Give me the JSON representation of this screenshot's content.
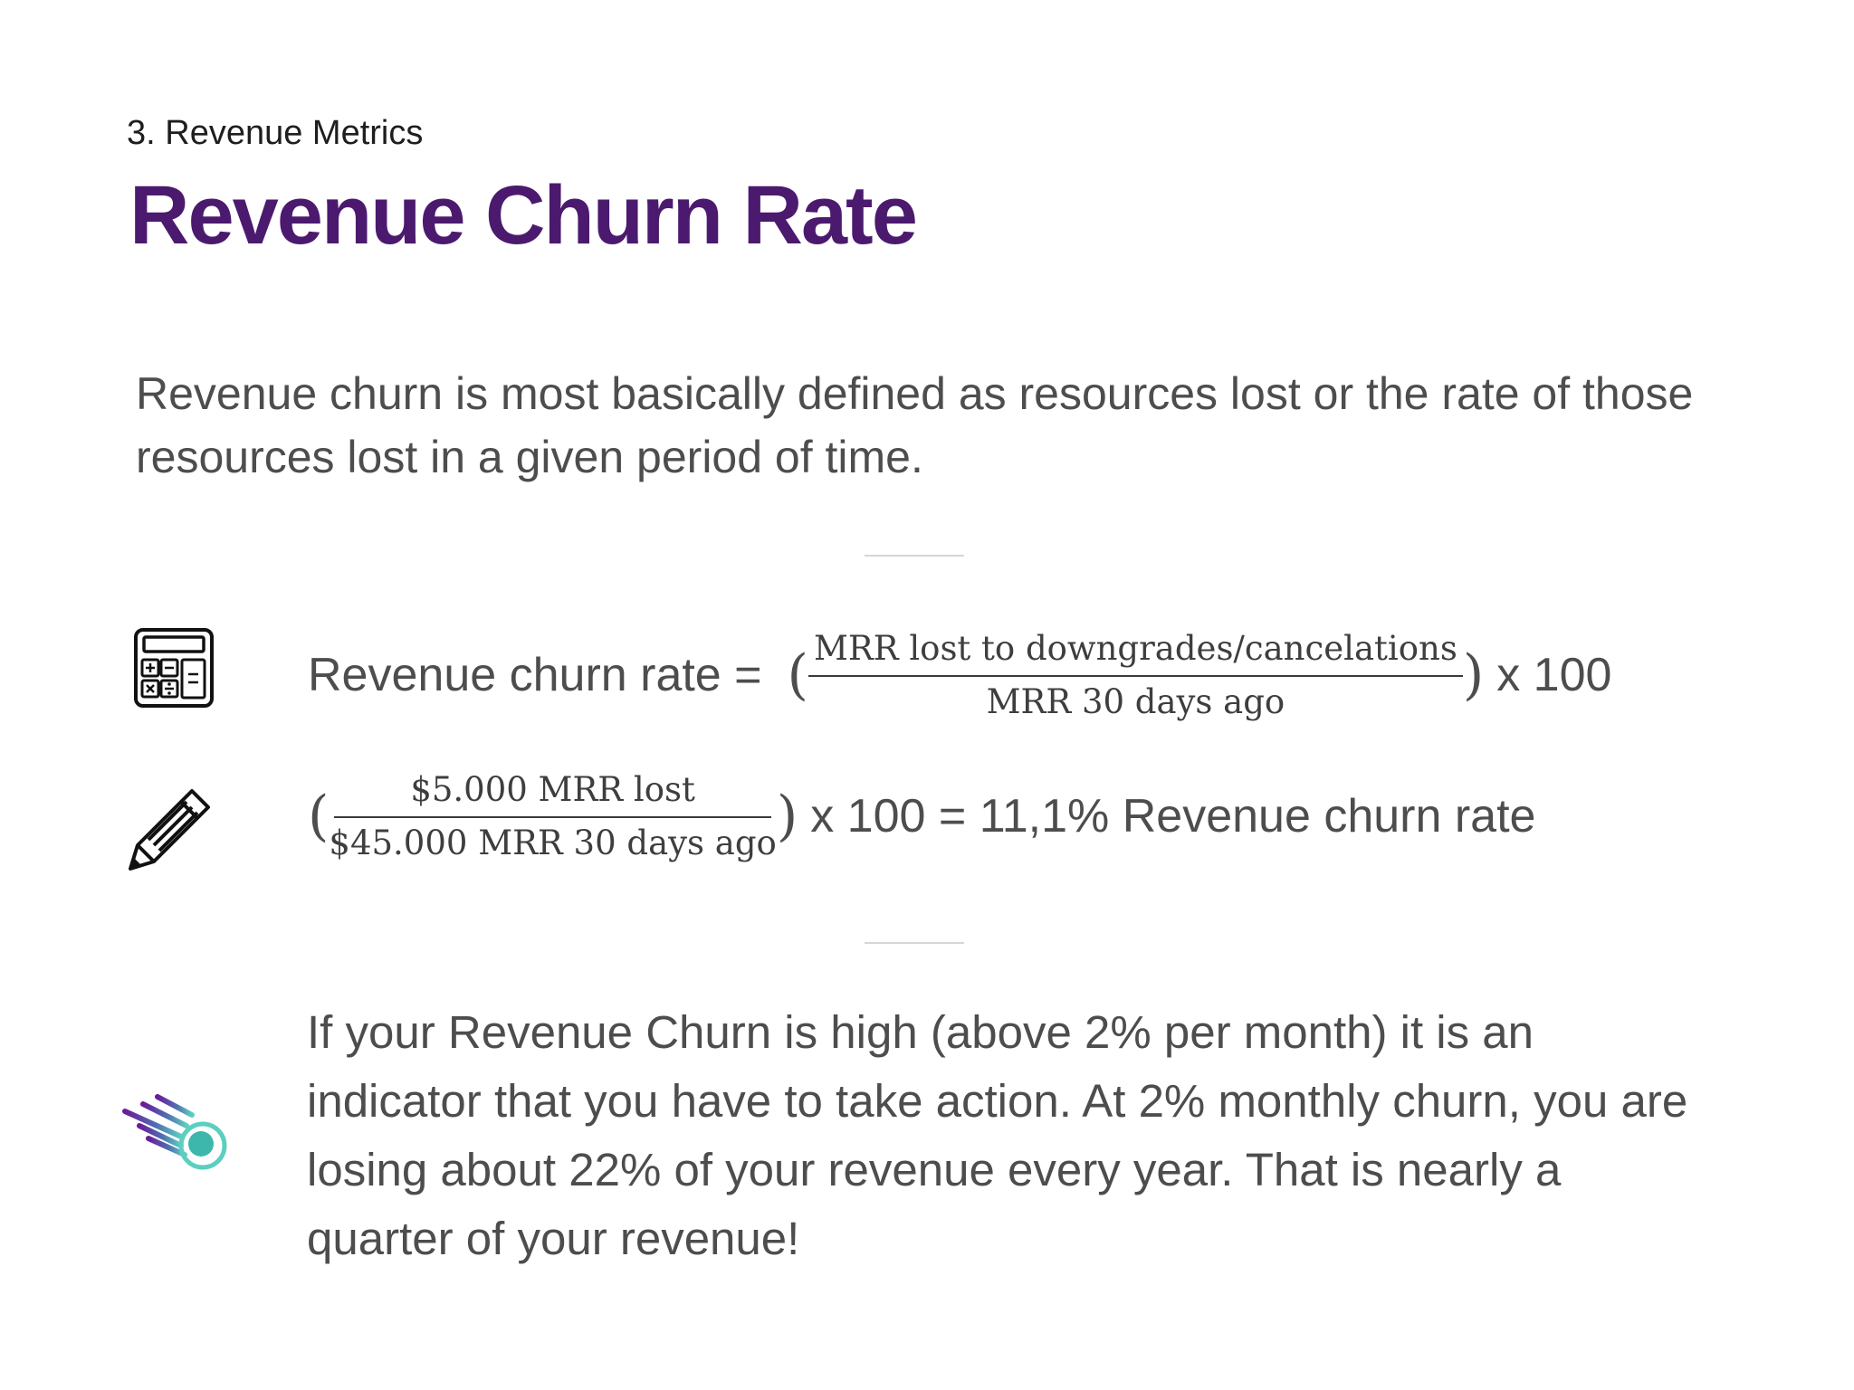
{
  "header": {
    "section_label": "3. Revenue  Metrics",
    "title": "Revenue Churn Rate"
  },
  "intro": {
    "text": "Revenue churn is most basically defined as resources lost or the rate of those resources lost in a given period of time."
  },
  "formula": {
    "label": "Revenue churn rate =",
    "open_paren": "(",
    "numerator": "MRR lost to downgrades/cancelations",
    "denominator": "MRR 30 days ago",
    "close_paren": ")",
    "multiplier": "x 100"
  },
  "example": {
    "open_paren": "(",
    "numerator": "$5.000 MRR lost",
    "denominator": "$45.000 MRR 30 days ago",
    "close_paren": ")",
    "result": "x 100 = 11,1% Revenue churn rate"
  },
  "note": {
    "text": "If your Revenue Churn is high (above 2% per month) it is an indicator that you have to take action. At 2% monthly churn, you are losing about 22% of your revenue every year. That is nearly a quarter of your revenue!"
  },
  "colors": {
    "title": "#4b1a6e",
    "body_text": "#4d4d4d",
    "divider": "#d6d6d6",
    "comet_gradient_start": "#6a1b9a",
    "comet_gradient_end": "#5ccfc0"
  },
  "icons": {
    "formula": "calculator-icon",
    "example": "pencil-icon",
    "note": "comet-icon"
  }
}
